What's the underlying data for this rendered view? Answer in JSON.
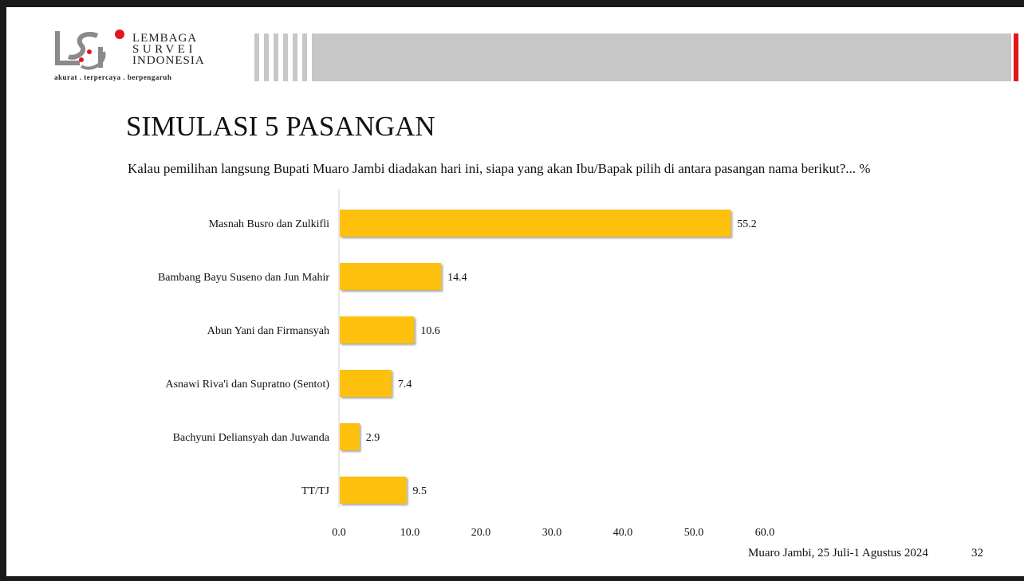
{
  "header": {
    "logo_line1": "LEMBAGA",
    "logo_line2": "SURVEI",
    "logo_line3": "INDONESIA",
    "tagline": "akurat . terpercaya . berpengaruh"
  },
  "slide": {
    "title": "SIMULASI 5 PASANGAN",
    "question": "Kalau pemilihan langsung Bupati Muaro Jambi diadakan hari ini, siapa yang akan Ibu/Bapak pilih di antara pasangan nama berikut?... %"
  },
  "footer": {
    "date": "Muaro Jambi, 25 Juli-1 Agustus 2024",
    "page": "32"
  },
  "colors": {
    "bar": "#fdc00f",
    "banner": "#c7c7c7",
    "accent_red": "#e01818"
  },
  "chart_data": {
    "type": "bar",
    "orientation": "horizontal",
    "categories": [
      "Masnah Busro dan Zulkifli",
      "Bambang Bayu Suseno dan Jun Mahir",
      "Abun Yani dan Firmansyah",
      "Asnawi Riva'i dan Supratno (Sentot)",
      "Bachyuni Deliansyah dan Juwanda",
      "TT/TJ"
    ],
    "values": [
      55.2,
      14.4,
      10.6,
      7.4,
      2.9,
      9.5
    ],
    "value_labels": [
      "55.2",
      "14.4",
      "10.6",
      "7.4",
      "2.9",
      "9.5"
    ],
    "xlim": [
      0,
      60
    ],
    "ticks": [
      0,
      10,
      20,
      30,
      40,
      50,
      60
    ],
    "tick_labels": [
      "0.0",
      "10.0",
      "20.0",
      "30.0",
      "40.0",
      "50.0",
      "60.0"
    ],
    "grid": false,
    "legend": "none"
  }
}
